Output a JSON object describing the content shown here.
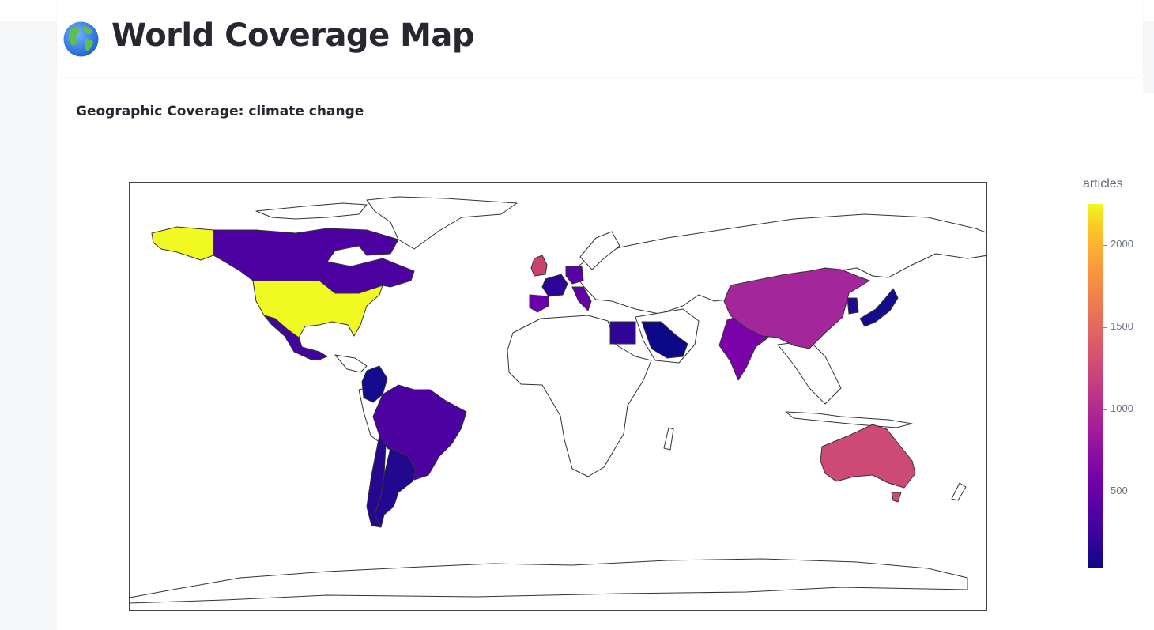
{
  "page": {
    "title": "World Coverage Map",
    "title_icon": "globe-icon"
  },
  "chart": {
    "subtitle": "Geographic Coverage: climate change"
  },
  "chart_data": {
    "type": "choropleth",
    "title": "Geographic Coverage: climate change",
    "colorbar_title": "articles",
    "colorscale": "plasma",
    "colorbar_ticks": [
      "500",
      "1000",
      "1500",
      "2000"
    ],
    "range": [
      30,
      2240
    ],
    "countries": [
      {
        "name": "United States",
        "value": 2220
      },
      {
        "name": "Australia",
        "value": 1150
      },
      {
        "name": "United Kingdom",
        "value": 1100
      },
      {
        "name": "China",
        "value": 900
      },
      {
        "name": "India",
        "value": 620
      },
      {
        "name": "Italy",
        "value": 620
      },
      {
        "name": "Spain",
        "value": 580
      },
      {
        "name": "Germany",
        "value": 520
      },
      {
        "name": "Canada",
        "value": 450
      },
      {
        "name": "Brazil",
        "value": 420
      },
      {
        "name": "Mexico",
        "value": 380
      },
      {
        "name": "France",
        "value": 250
      },
      {
        "name": "Egypt",
        "value": 230
      },
      {
        "name": "Argentina",
        "value": 210
      },
      {
        "name": "Chile",
        "value": 200
      },
      {
        "name": "Japan",
        "value": 130
      },
      {
        "name": "South Korea",
        "value": 110
      },
      {
        "name": "Colombia",
        "value": 90
      },
      {
        "name": "Saudi Arabia",
        "value": 60
      }
    ]
  }
}
